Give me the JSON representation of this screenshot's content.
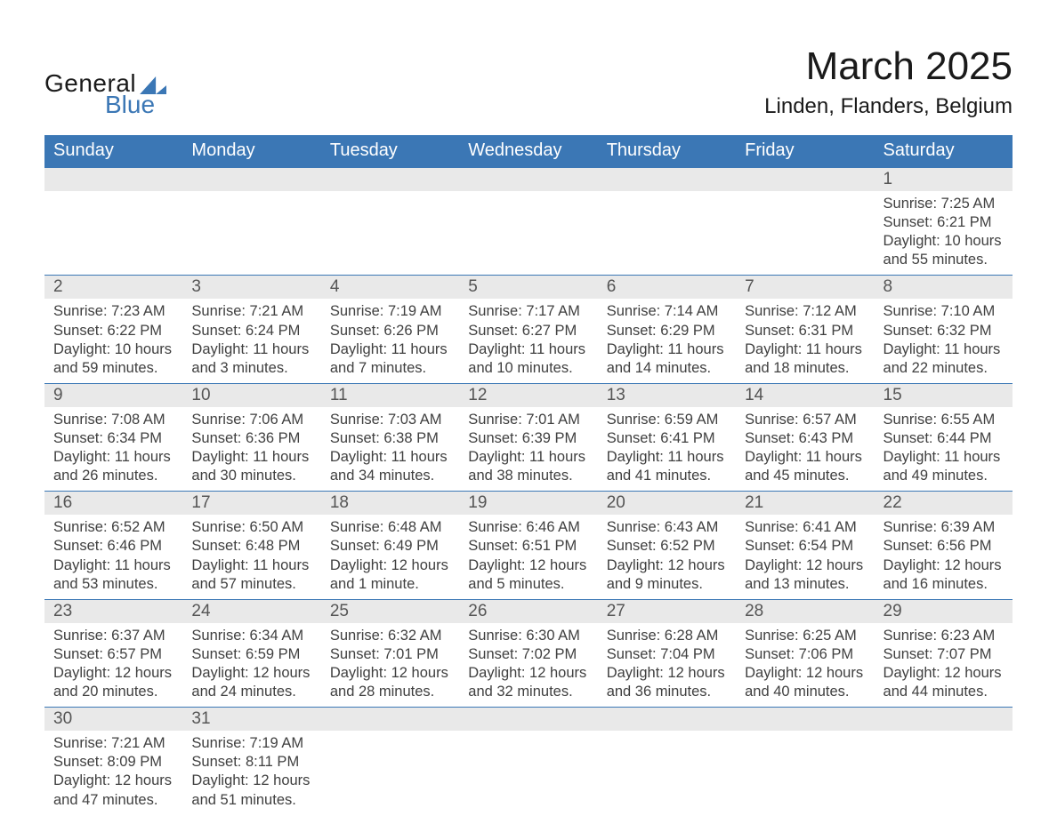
{
  "logo": {
    "text_general": "General",
    "text_blue": "Blue"
  },
  "header": {
    "month_title": "March 2025",
    "location": "Linden, Flanders, Belgium"
  },
  "colors": {
    "header_bg": "#3b77b5",
    "header_text": "#ffffff",
    "daynum_bg": "#e9e9e9",
    "row_border": "#3b77b5",
    "body_text": "#404040"
  },
  "weekdays": [
    "Sunday",
    "Monday",
    "Tuesday",
    "Wednesday",
    "Thursday",
    "Friday",
    "Saturday"
  ],
  "weeks": [
    {
      "days": [
        {
          "n": "",
          "sunrise": "",
          "sunset": "",
          "daylight1": "",
          "daylight2": ""
        },
        {
          "n": "",
          "sunrise": "",
          "sunset": "",
          "daylight1": "",
          "daylight2": ""
        },
        {
          "n": "",
          "sunrise": "",
          "sunset": "",
          "daylight1": "",
          "daylight2": ""
        },
        {
          "n": "",
          "sunrise": "",
          "sunset": "",
          "daylight1": "",
          "daylight2": ""
        },
        {
          "n": "",
          "sunrise": "",
          "sunset": "",
          "daylight1": "",
          "daylight2": ""
        },
        {
          "n": "",
          "sunrise": "",
          "sunset": "",
          "daylight1": "",
          "daylight2": ""
        },
        {
          "n": "1",
          "sunrise": "Sunrise: 7:25 AM",
          "sunset": "Sunset: 6:21 PM",
          "daylight1": "Daylight: 10 hours",
          "daylight2": "and 55 minutes."
        }
      ]
    },
    {
      "days": [
        {
          "n": "2",
          "sunrise": "Sunrise: 7:23 AM",
          "sunset": "Sunset: 6:22 PM",
          "daylight1": "Daylight: 10 hours",
          "daylight2": "and 59 minutes."
        },
        {
          "n": "3",
          "sunrise": "Sunrise: 7:21 AM",
          "sunset": "Sunset: 6:24 PM",
          "daylight1": "Daylight: 11 hours",
          "daylight2": "and 3 minutes."
        },
        {
          "n": "4",
          "sunrise": "Sunrise: 7:19 AM",
          "sunset": "Sunset: 6:26 PM",
          "daylight1": "Daylight: 11 hours",
          "daylight2": "and 7 minutes."
        },
        {
          "n": "5",
          "sunrise": "Sunrise: 7:17 AM",
          "sunset": "Sunset: 6:27 PM",
          "daylight1": "Daylight: 11 hours",
          "daylight2": "and 10 minutes."
        },
        {
          "n": "6",
          "sunrise": "Sunrise: 7:14 AM",
          "sunset": "Sunset: 6:29 PM",
          "daylight1": "Daylight: 11 hours",
          "daylight2": "and 14 minutes."
        },
        {
          "n": "7",
          "sunrise": "Sunrise: 7:12 AM",
          "sunset": "Sunset: 6:31 PM",
          "daylight1": "Daylight: 11 hours",
          "daylight2": "and 18 minutes."
        },
        {
          "n": "8",
          "sunrise": "Sunrise: 7:10 AM",
          "sunset": "Sunset: 6:32 PM",
          "daylight1": "Daylight: 11 hours",
          "daylight2": "and 22 minutes."
        }
      ]
    },
    {
      "days": [
        {
          "n": "9",
          "sunrise": "Sunrise: 7:08 AM",
          "sunset": "Sunset: 6:34 PM",
          "daylight1": "Daylight: 11 hours",
          "daylight2": "and 26 minutes."
        },
        {
          "n": "10",
          "sunrise": "Sunrise: 7:06 AM",
          "sunset": "Sunset: 6:36 PM",
          "daylight1": "Daylight: 11 hours",
          "daylight2": "and 30 minutes."
        },
        {
          "n": "11",
          "sunrise": "Sunrise: 7:03 AM",
          "sunset": "Sunset: 6:38 PM",
          "daylight1": "Daylight: 11 hours",
          "daylight2": "and 34 minutes."
        },
        {
          "n": "12",
          "sunrise": "Sunrise: 7:01 AM",
          "sunset": "Sunset: 6:39 PM",
          "daylight1": "Daylight: 11 hours",
          "daylight2": "and 38 minutes."
        },
        {
          "n": "13",
          "sunrise": "Sunrise: 6:59 AM",
          "sunset": "Sunset: 6:41 PM",
          "daylight1": "Daylight: 11 hours",
          "daylight2": "and 41 minutes."
        },
        {
          "n": "14",
          "sunrise": "Sunrise: 6:57 AM",
          "sunset": "Sunset: 6:43 PM",
          "daylight1": "Daylight: 11 hours",
          "daylight2": "and 45 minutes."
        },
        {
          "n": "15",
          "sunrise": "Sunrise: 6:55 AM",
          "sunset": "Sunset: 6:44 PM",
          "daylight1": "Daylight: 11 hours",
          "daylight2": "and 49 minutes."
        }
      ]
    },
    {
      "days": [
        {
          "n": "16",
          "sunrise": "Sunrise: 6:52 AM",
          "sunset": "Sunset: 6:46 PM",
          "daylight1": "Daylight: 11 hours",
          "daylight2": "and 53 minutes."
        },
        {
          "n": "17",
          "sunrise": "Sunrise: 6:50 AM",
          "sunset": "Sunset: 6:48 PM",
          "daylight1": "Daylight: 11 hours",
          "daylight2": "and 57 minutes."
        },
        {
          "n": "18",
          "sunrise": "Sunrise: 6:48 AM",
          "sunset": "Sunset: 6:49 PM",
          "daylight1": "Daylight: 12 hours",
          "daylight2": "and 1 minute."
        },
        {
          "n": "19",
          "sunrise": "Sunrise: 6:46 AM",
          "sunset": "Sunset: 6:51 PM",
          "daylight1": "Daylight: 12 hours",
          "daylight2": "and 5 minutes."
        },
        {
          "n": "20",
          "sunrise": "Sunrise: 6:43 AM",
          "sunset": "Sunset: 6:52 PM",
          "daylight1": "Daylight: 12 hours",
          "daylight2": "and 9 minutes."
        },
        {
          "n": "21",
          "sunrise": "Sunrise: 6:41 AM",
          "sunset": "Sunset: 6:54 PM",
          "daylight1": "Daylight: 12 hours",
          "daylight2": "and 13 minutes."
        },
        {
          "n": "22",
          "sunrise": "Sunrise: 6:39 AM",
          "sunset": "Sunset: 6:56 PM",
          "daylight1": "Daylight: 12 hours",
          "daylight2": "and 16 minutes."
        }
      ]
    },
    {
      "days": [
        {
          "n": "23",
          "sunrise": "Sunrise: 6:37 AM",
          "sunset": "Sunset: 6:57 PM",
          "daylight1": "Daylight: 12 hours",
          "daylight2": "and 20 minutes."
        },
        {
          "n": "24",
          "sunrise": "Sunrise: 6:34 AM",
          "sunset": "Sunset: 6:59 PM",
          "daylight1": "Daylight: 12 hours",
          "daylight2": "and 24 minutes."
        },
        {
          "n": "25",
          "sunrise": "Sunrise: 6:32 AM",
          "sunset": "Sunset: 7:01 PM",
          "daylight1": "Daylight: 12 hours",
          "daylight2": "and 28 minutes."
        },
        {
          "n": "26",
          "sunrise": "Sunrise: 6:30 AM",
          "sunset": "Sunset: 7:02 PM",
          "daylight1": "Daylight: 12 hours",
          "daylight2": "and 32 minutes."
        },
        {
          "n": "27",
          "sunrise": "Sunrise: 6:28 AM",
          "sunset": "Sunset: 7:04 PM",
          "daylight1": "Daylight: 12 hours",
          "daylight2": "and 36 minutes."
        },
        {
          "n": "28",
          "sunrise": "Sunrise: 6:25 AM",
          "sunset": "Sunset: 7:06 PM",
          "daylight1": "Daylight: 12 hours",
          "daylight2": "and 40 minutes."
        },
        {
          "n": "29",
          "sunrise": "Sunrise: 6:23 AM",
          "sunset": "Sunset: 7:07 PM",
          "daylight1": "Daylight: 12 hours",
          "daylight2": "and 44 minutes."
        }
      ]
    },
    {
      "days": [
        {
          "n": "30",
          "sunrise": "Sunrise: 7:21 AM",
          "sunset": "Sunset: 8:09 PM",
          "daylight1": "Daylight: 12 hours",
          "daylight2": "and 47 minutes."
        },
        {
          "n": "31",
          "sunrise": "Sunrise: 7:19 AM",
          "sunset": "Sunset: 8:11 PM",
          "daylight1": "Daylight: 12 hours",
          "daylight2": "and 51 minutes."
        },
        {
          "n": "",
          "sunrise": "",
          "sunset": "",
          "daylight1": "",
          "daylight2": ""
        },
        {
          "n": "",
          "sunrise": "",
          "sunset": "",
          "daylight1": "",
          "daylight2": ""
        },
        {
          "n": "",
          "sunrise": "",
          "sunset": "",
          "daylight1": "",
          "daylight2": ""
        },
        {
          "n": "",
          "sunrise": "",
          "sunset": "",
          "daylight1": "",
          "daylight2": ""
        },
        {
          "n": "",
          "sunrise": "",
          "sunset": "",
          "daylight1": "",
          "daylight2": ""
        }
      ]
    }
  ]
}
